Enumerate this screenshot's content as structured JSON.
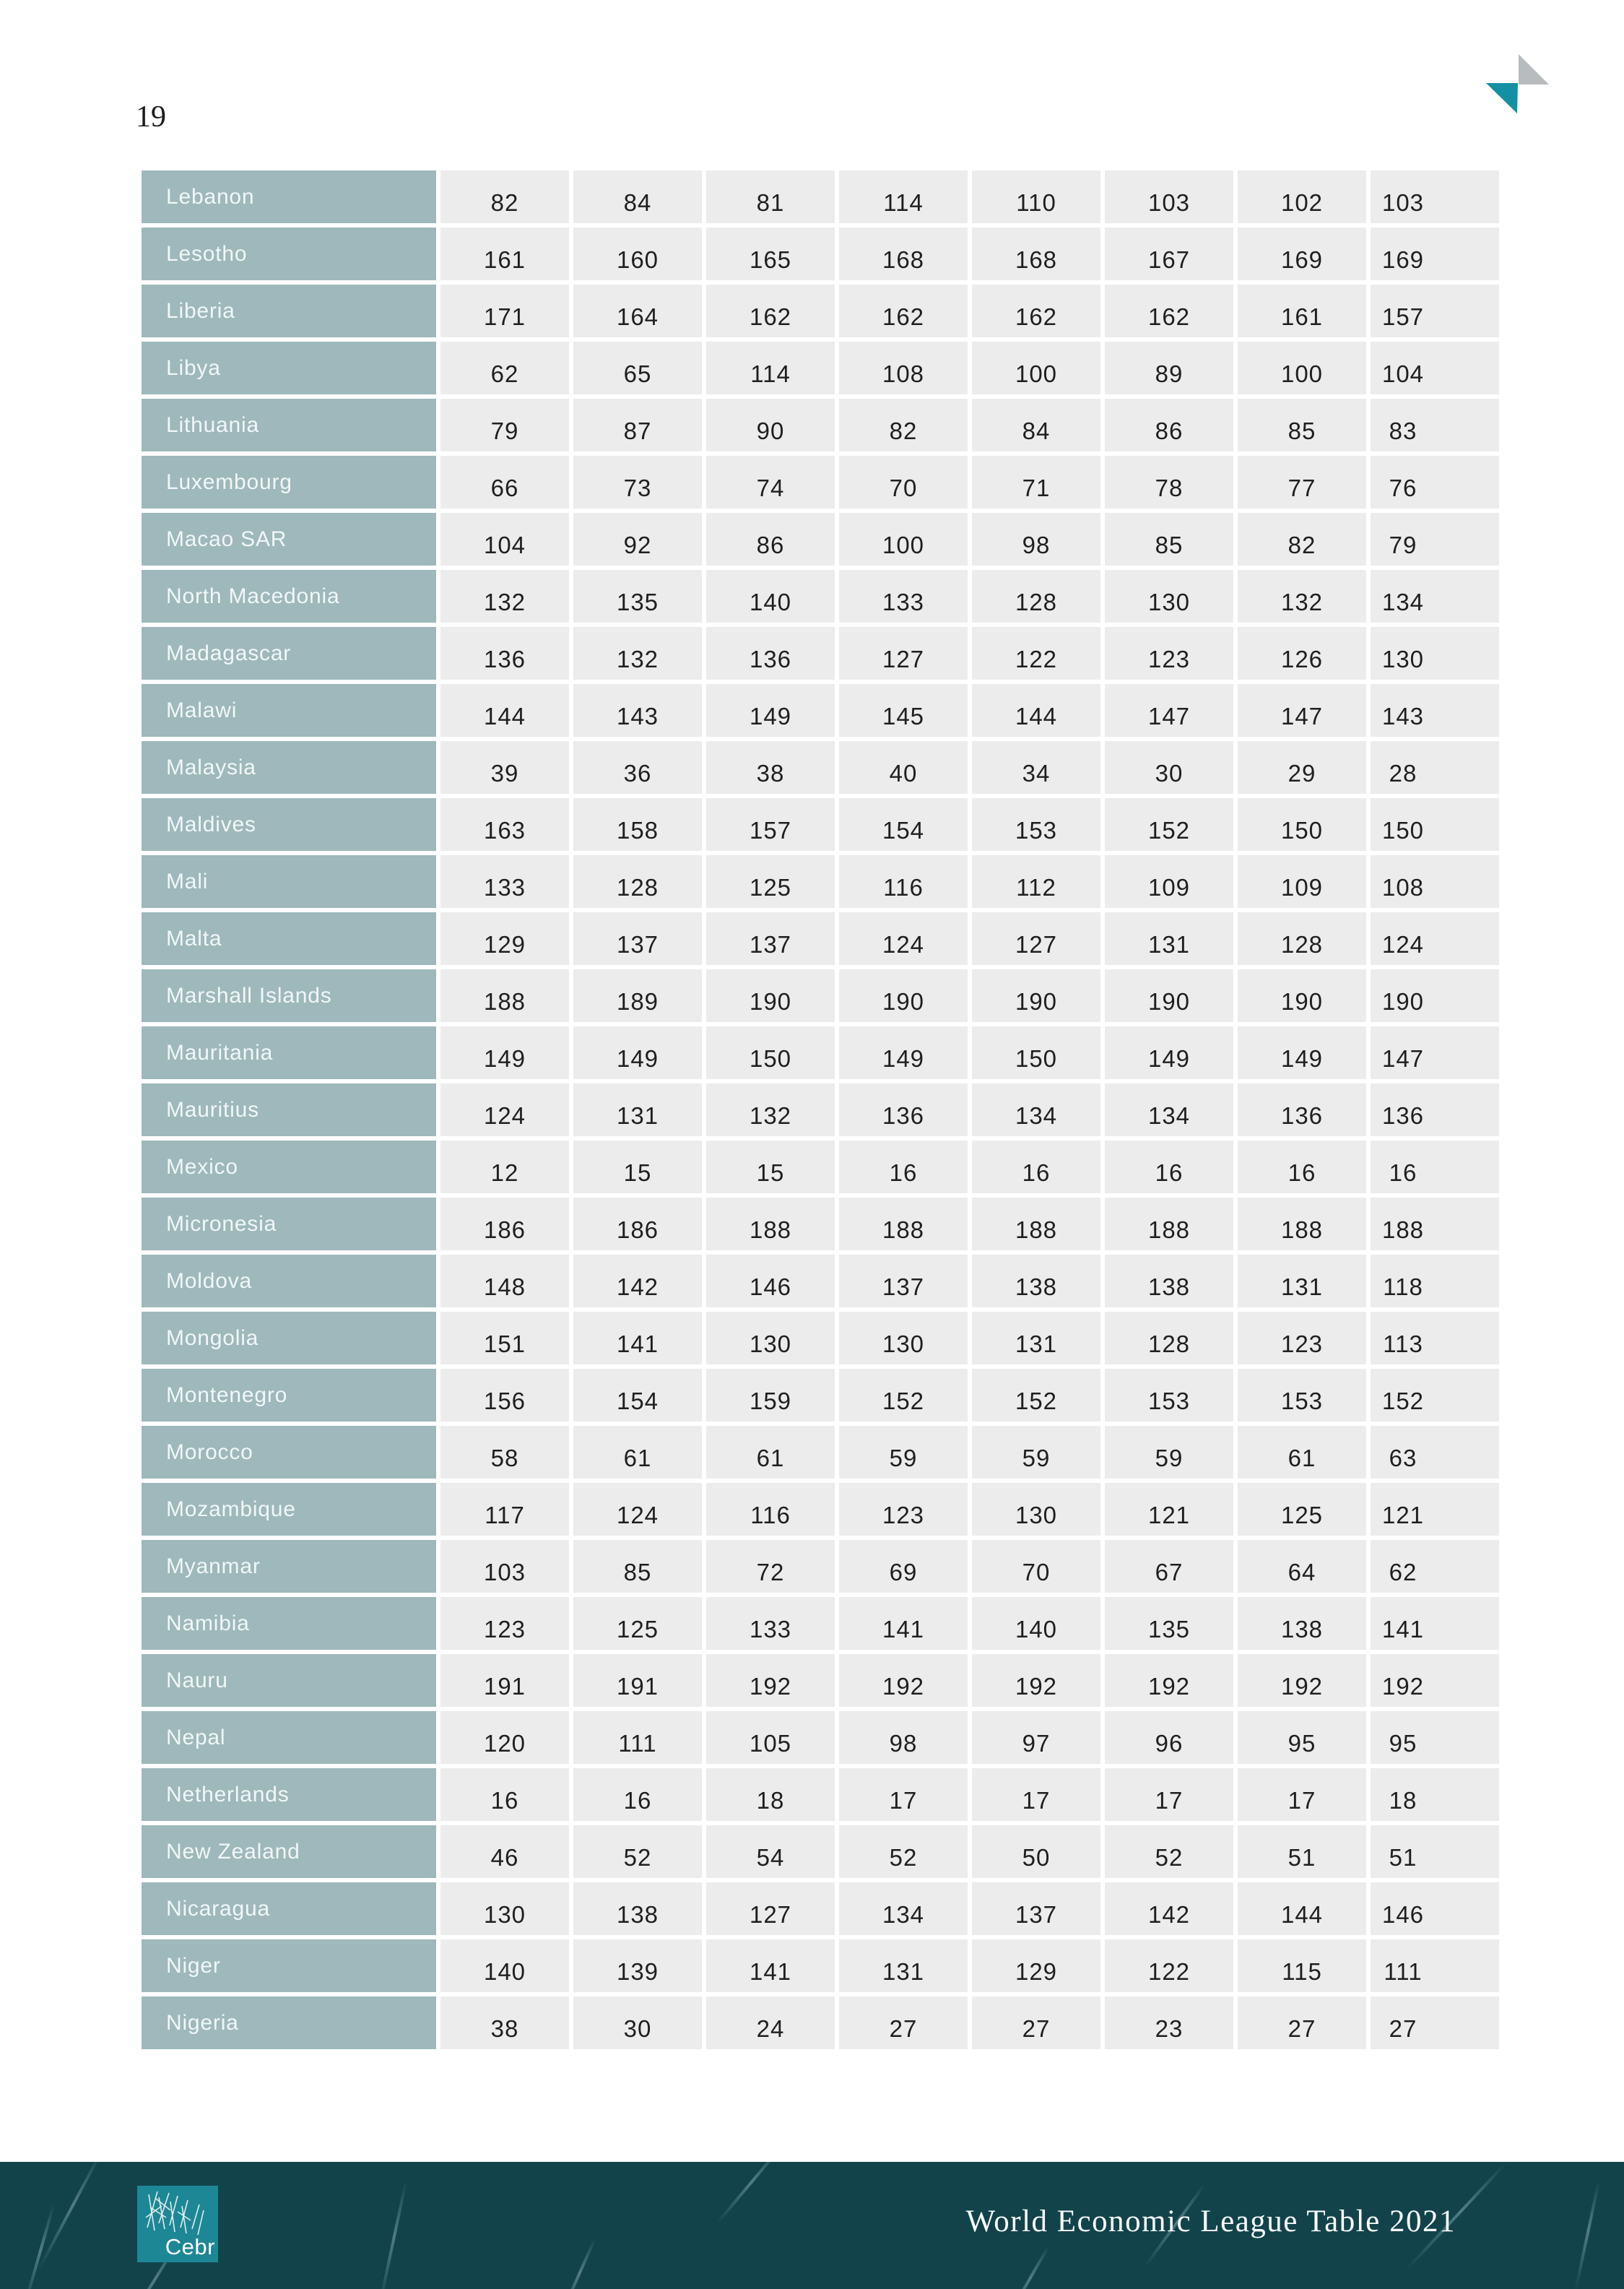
{
  "page_number": "19",
  "corner_logo": {
    "gray": "#B9BCBE",
    "teal": "#1390A2"
  },
  "colors": {
    "country_cell": "#9EB8BB",
    "value_cell": "#ECECEC",
    "footer_background": "#12434B",
    "brand_background": "#1E8795"
  },
  "table": {
    "rows": [
      {
        "country": "Lebanon",
        "values": [
          82,
          84,
          81,
          114,
          110,
          103,
          102,
          103
        ]
      },
      {
        "country": "Lesotho",
        "values": [
          161,
          160,
          165,
          168,
          168,
          167,
          169,
          169
        ]
      },
      {
        "country": "Liberia",
        "values": [
          171,
          164,
          162,
          162,
          162,
          162,
          161,
          157
        ]
      },
      {
        "country": "Libya",
        "values": [
          62,
          65,
          114,
          108,
          100,
          89,
          100,
          104
        ]
      },
      {
        "country": "Lithuania",
        "values": [
          79,
          87,
          90,
          82,
          84,
          86,
          85,
          83
        ]
      },
      {
        "country": "Luxembourg",
        "values": [
          66,
          73,
          74,
          70,
          71,
          78,
          77,
          76
        ]
      },
      {
        "country": "Macao SAR",
        "values": [
          104,
          92,
          86,
          100,
          98,
          85,
          82,
          79
        ]
      },
      {
        "country": "North Macedonia",
        "values": [
          132,
          135,
          140,
          133,
          128,
          130,
          132,
          134
        ]
      },
      {
        "country": "Madagascar",
        "values": [
          136,
          132,
          136,
          127,
          122,
          123,
          126,
          130
        ]
      },
      {
        "country": "Malawi",
        "values": [
          144,
          143,
          149,
          145,
          144,
          147,
          147,
          143
        ]
      },
      {
        "country": "Malaysia",
        "values": [
          39,
          36,
          38,
          40,
          34,
          30,
          29,
          28
        ]
      },
      {
        "country": "Maldives",
        "values": [
          163,
          158,
          157,
          154,
          153,
          152,
          150,
          150
        ]
      },
      {
        "country": "Mali",
        "values": [
          133,
          128,
          125,
          116,
          112,
          109,
          109,
          108
        ]
      },
      {
        "country": "Malta",
        "values": [
          129,
          137,
          137,
          124,
          127,
          131,
          128,
          124
        ]
      },
      {
        "country": "Marshall Islands",
        "values": [
          188,
          189,
          190,
          190,
          190,
          190,
          190,
          190
        ]
      },
      {
        "country": "Mauritania",
        "values": [
          149,
          149,
          150,
          149,
          150,
          149,
          149,
          147
        ]
      },
      {
        "country": "Mauritius",
        "values": [
          124,
          131,
          132,
          136,
          134,
          134,
          136,
          136
        ]
      },
      {
        "country": "Mexico",
        "values": [
          12,
          15,
          15,
          16,
          16,
          16,
          16,
          16
        ]
      },
      {
        "country": "Micronesia",
        "values": [
          186,
          186,
          188,
          188,
          188,
          188,
          188,
          188
        ]
      },
      {
        "country": "Moldova",
        "values": [
          148,
          142,
          146,
          137,
          138,
          138,
          131,
          118
        ]
      },
      {
        "country": "Mongolia",
        "values": [
          151,
          141,
          130,
          130,
          131,
          128,
          123,
          113
        ]
      },
      {
        "country": "Montenegro",
        "values": [
          156,
          154,
          159,
          152,
          152,
          153,
          153,
          152
        ]
      },
      {
        "country": "Morocco",
        "values": [
          58,
          61,
          61,
          59,
          59,
          59,
          61,
          63
        ]
      },
      {
        "country": "Mozambique",
        "values": [
          117,
          124,
          116,
          123,
          130,
          121,
          125,
          121
        ]
      },
      {
        "country": "Myanmar",
        "values": [
          103,
          85,
          72,
          69,
          70,
          67,
          64,
          62
        ]
      },
      {
        "country": "Namibia",
        "values": [
          123,
          125,
          133,
          141,
          140,
          135,
          138,
          141
        ]
      },
      {
        "country": "Nauru",
        "values": [
          191,
          191,
          192,
          192,
          192,
          192,
          192,
          192
        ]
      },
      {
        "country": "Nepal",
        "values": [
          120,
          111,
          105,
          98,
          97,
          96,
          95,
          95
        ]
      },
      {
        "country": "Netherlands",
        "values": [
          16,
          16,
          18,
          17,
          17,
          17,
          17,
          18
        ]
      },
      {
        "country": "New Zealand",
        "values": [
          46,
          52,
          54,
          52,
          50,
          52,
          51,
          51
        ]
      },
      {
        "country": "Nicaragua",
        "values": [
          130,
          138,
          127,
          134,
          137,
          142,
          144,
          146
        ]
      },
      {
        "country": "Niger",
        "values": [
          140,
          139,
          141,
          131,
          129,
          122,
          115,
          111
        ]
      },
      {
        "country": "Nigeria",
        "values": [
          38,
          30,
          24,
          27,
          27,
          23,
          27,
          27
        ]
      }
    ]
  },
  "footer": {
    "brand": "Cebr",
    "title": "World Economic League Table 2021"
  }
}
